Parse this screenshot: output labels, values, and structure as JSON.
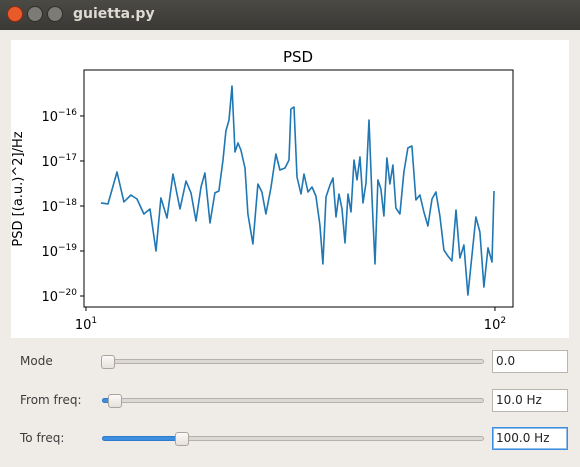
{
  "window": {
    "title": "guietta.py"
  },
  "chart_data": {
    "type": "line",
    "title": "PSD",
    "ylabel": "PSD [(a.u.)^2]/Hz",
    "color": "#1f77b4",
    "xscale": "log",
    "yscale": "log",
    "xlim": [
      9.89,
      110.7
    ],
    "ylim": [
      5.7e-21,
      1.05e-15
    ],
    "xticks": [
      {
        "value": 10,
        "label": "10",
        "exponent": "1"
      },
      {
        "value": 100,
        "label": "10",
        "exponent": "2"
      }
    ],
    "yticks": [
      {
        "value": 1e-16,
        "label": "10",
        "exponent": "−16"
      },
      {
        "value": 1e-17,
        "label": "10",
        "exponent": "−17"
      },
      {
        "value": 1e-18,
        "label": "10",
        "exponent": "−18"
      },
      {
        "value": 1e-19,
        "label": "10",
        "exponent": "−19"
      },
      {
        "value": 1e-20,
        "label": "10",
        "exponent": "−20"
      }
    ],
    "x": [
      10.88,
      11.32,
      11.91,
      12.38,
      12.88,
      13.33,
      13.86,
      14.34,
      14.83,
      15.25,
      15.78,
      16.32,
      16.98,
      17.56,
      18.06,
      18.58,
      19.11,
      19.54,
      20.1,
      20.67,
      21.14,
      21.63,
      21.99,
      22.37,
      22.75,
      23.14,
      23.53,
      23.93,
      24.48,
      24.89,
      25.6,
      26.33,
      26.93,
      27.54,
      28.32,
      29.13,
      29.8,
      30.66,
      31.36,
      31.71,
      32.26,
      32.81,
      33.56,
      34.12,
      34.9,
      35.7,
      36.5,
      37.33,
      37.97,
      38.62,
      39.5,
      40.18,
      40.86,
      41.56,
      42.27,
      42.99,
      43.72,
      44.46,
      45.22,
      45.99,
      46.77,
      47.57,
      48.38,
      49.2,
      50.04,
      50.89,
      51.75,
      52.63,
      53.53,
      54.44,
      55.37,
      56.31,
      57.26,
      58.57,
      59.9,
      61.27,
      62.66,
      64.08,
      65.54,
      67.03,
      68.56,
      70.15,
      71.73,
      73.36,
      75.04,
      76.75,
      78.5,
      80.29,
      82.1,
      83.98,
      85.9,
      87.85,
      89.84,
      91.9,
      93.99,
      96.14,
      98.33,
      99.45
    ],
    "values": [
      1.17e-18,
      1.11e-18,
      5.7e-18,
      1.23e-18,
      1.75e-18,
      1.43e-18,
      6.64e-19,
      8.57e-19,
      1e-19,
      1.51e-18,
      5.41e-19,
      5.14e-18,
      8.57e-19,
      3.59e-18,
      1.95e-18,
      4.64e-19,
      2.64e-18,
      5.41e-18,
      4.19e-19,
      1.95e-18,
      2.15e-18,
      1.05e-17,
      4.64e-17,
      8.15e-17,
      4.64e-16,
      1.58e-17,
      2.51e-17,
      1.75e-17,
      6.98e-18,
      6.64e-19,
      1.43e-19,
      3.08e-18,
      2.05e-18,
      6.64e-19,
      2.51e-18,
      1.43e-17,
      6.31e-18,
      6.98e-18,
      1.05e-17,
      1.43e-16,
      1.58e-16,
      4.41e-18,
      1.85e-18,
      5.14e-18,
      2.05e-18,
      2.64e-18,
      1.67e-18,
      3.79e-19,
      5.14e-20,
      1.58e-18,
      2.93e-18,
      4.19e-18,
      5.7e-19,
      1.85e-18,
      8.57e-19,
      1.51e-19,
      1.85e-18,
      7.36e-19,
      1.05e-17,
      3.79e-18,
      1.23e-17,
      1.17e-18,
      3.25e-18,
      8.15e-17,
      1.51e-18,
      5.14e-20,
      3.79e-18,
      2.39e-18,
      6e-19,
      1.17e-17,
      3.08e-18,
      8.15e-18,
      9.03e-19,
      6.64e-19,
      5.7e-18,
      1.95e-17,
      2.15e-17,
      1.36e-18,
      1.75e-18,
      7.36e-19,
      3.59e-19,
      1.43e-18,
      2.05e-18,
      6e-19,
      1.05e-19,
      7.74e-20,
      6e-20,
      8.15e-19,
      6.98e-20,
      1.36e-19,
      1.05e-20,
      7.74e-20,
      5.7e-19,
      2.64e-19,
      1.58e-20,
      1.17e-19,
      5.7e-20,
      2.15e-18
    ]
  },
  "controls": [
    {
      "label": "Mode",
      "value": "0.0"
    },
    {
      "label": "From freq:",
      "value": "10.0 Hz"
    },
    {
      "label": "To freq:",
      "value": "100.0 Hz"
    }
  ]
}
